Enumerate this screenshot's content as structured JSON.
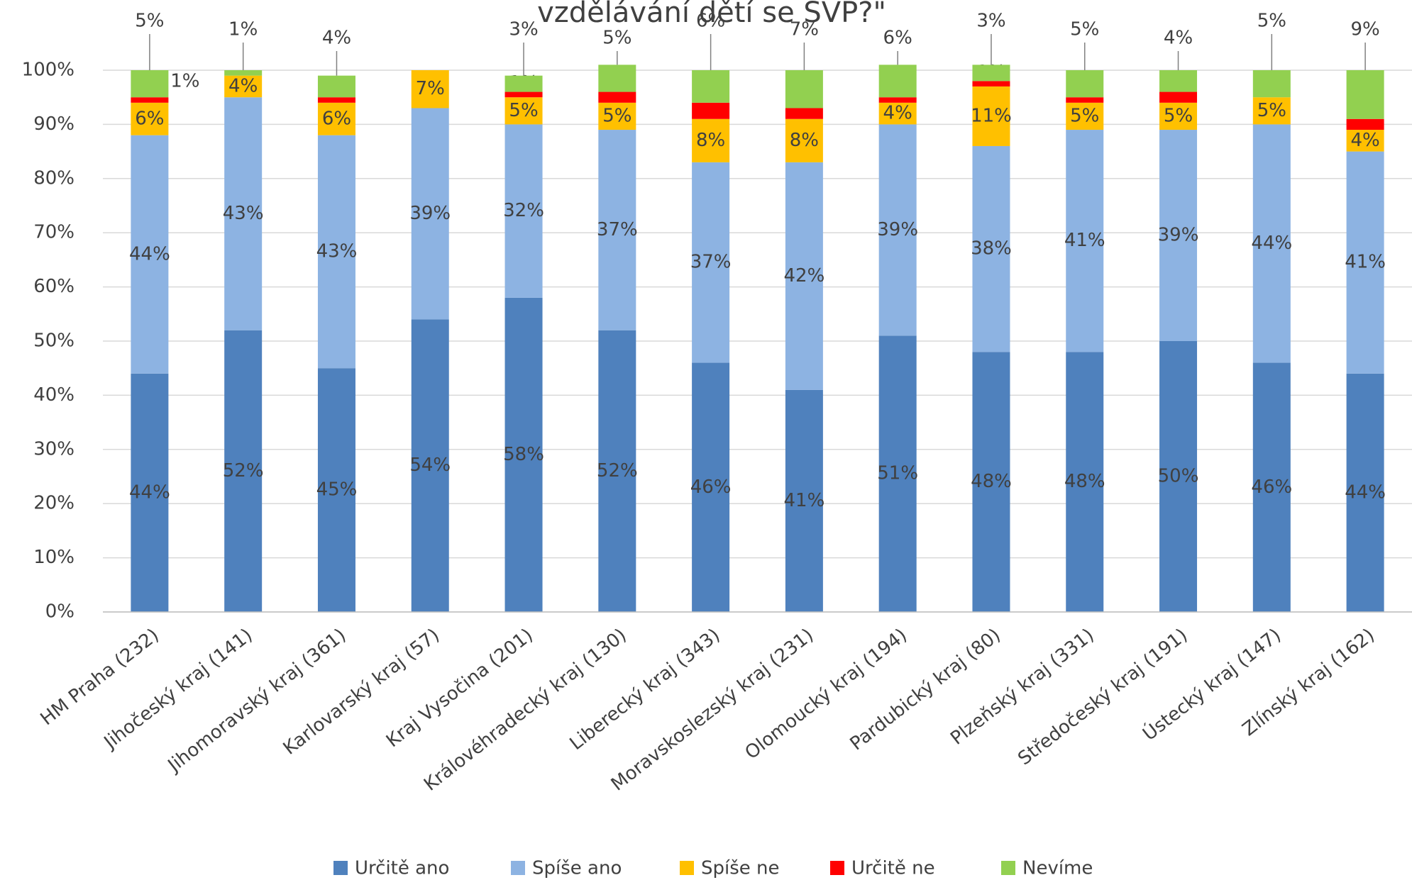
{
  "chart_data": {
    "type": "stacked_bar",
    "title": "vzdělávání dětí se SVP?\"",
    "categories": [
      "HM Praha (232)",
      "Jihočeský kraj (141)",
      "Jihomoravský kraj (361)",
      "Karlovarský kraj (57)",
      "Kraj Vysočina (201)",
      "Královéhradecký kraj (130)",
      "Liberecký kraj (343)",
      "Moravskoslezský kraj (231)",
      "Olomoucký kraj (194)",
      "Pardubický kraj (80)",
      "Plzeňský kraj (331)",
      "Středočeský kraj (191)",
      "Ústecký kraj (147)",
      "Zlínský kraj (162)"
    ],
    "series": [
      {
        "name": "Určitě ano",
        "color": "#4f81bd",
        "values": [
          44,
          52,
          45,
          54,
          58,
          52,
          46,
          41,
          51,
          48,
          48,
          50,
          46,
          44
        ],
        "value_labels": [
          "44%",
          "52%",
          "45%",
          "54%",
          "58%",
          "52%",
          "46%",
          "41%",
          "51%",
          "48%",
          "48%",
          "50%",
          "46%",
          "44%"
        ]
      },
      {
        "name": "Spíše ano",
        "color": "#8db3e2",
        "values": [
          44,
          43,
          43,
          39,
          32,
          37,
          37,
          42,
          39,
          38,
          41,
          39,
          44,
          41
        ],
        "value_labels": [
          "44%",
          "43%",
          "43%",
          "39%",
          "32%",
          "37%",
          "37%",
          "42%",
          "39%",
          "38%",
          "41%",
          "39%",
          "44%",
          "41%"
        ]
      },
      {
        "name": "Spíše ne",
        "color": "#ffc000",
        "values": [
          6,
          4,
          6,
          7,
          5,
          5,
          8,
          8,
          4,
          11,
          5,
          5,
          5,
          4
        ],
        "value_labels": [
          "6%",
          "4%",
          "6%",
          "7%",
          "5%",
          "5%",
          "8%",
          "8%",
          "4%",
          "11%",
          "5%",
          "5%",
          "5%",
          "4%"
        ]
      },
      {
        "name": "Určitě ne",
        "color": "#ff0000",
        "values": [
          1,
          0,
          1,
          0,
          1,
          2,
          3,
          2,
          1,
          1,
          1,
          2,
          0,
          2
        ],
        "value_labels": [
          "1%",
          null,
          "1%",
          null,
          "1%",
          "2%",
          "3%",
          "2%",
          "1%",
          "1%",
          "1%",
          "2%",
          null,
          "2%"
        ]
      },
      {
        "name": "Nevíme",
        "color": "#92d050",
        "values": [
          5,
          1,
          4,
          0,
          3,
          5,
          6,
          7,
          6,
          3,
          5,
          4,
          5,
          9
        ],
        "value_labels": [
          "5%",
          "1%",
          "4%",
          null,
          "3%",
          "5%",
          "6%",
          "7%",
          "6%",
          "3%",
          "5%",
          "4%",
          "5%",
          "9%"
        ]
      }
    ],
    "ylim": [
      0,
      100
    ],
    "yticks": [
      {
        "value": 0,
        "label": "0%"
      },
      {
        "value": 10,
        "label": "10%"
      },
      {
        "value": 20,
        "label": "20%"
      },
      {
        "value": 30,
        "label": "30%"
      },
      {
        "value": 40,
        "label": "40%"
      },
      {
        "value": 50,
        "label": "50%"
      },
      {
        "value": 60,
        "label": "60%"
      },
      {
        "value": 70,
        "label": "70%"
      },
      {
        "value": 80,
        "label": "80%"
      },
      {
        "value": 90,
        "label": "90%"
      },
      {
        "value": 100,
        "label": "100%"
      }
    ],
    "grid": true,
    "legend": "bottom"
  }
}
